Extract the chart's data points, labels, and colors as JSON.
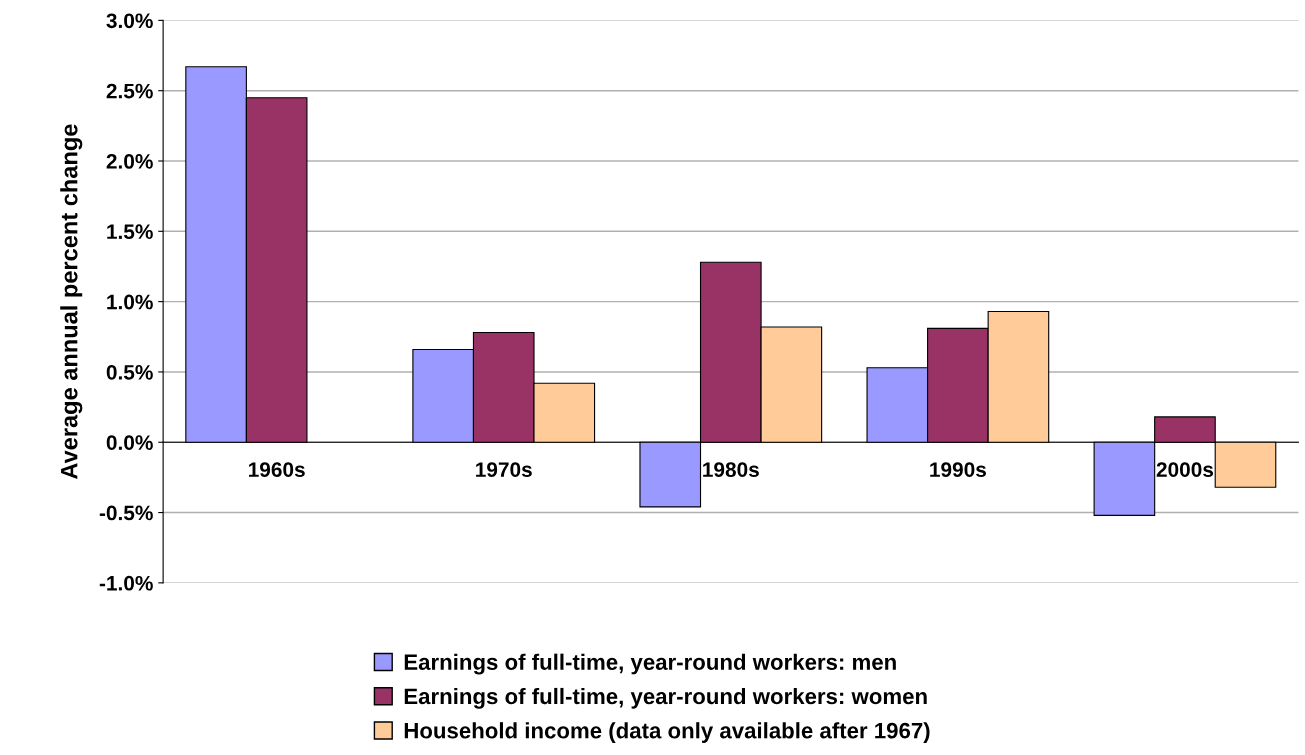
{
  "chart_data": {
    "type": "bar",
    "ylabel": "Average annual percent change",
    "categories": [
      "1960s",
      "1970s",
      "1980s",
      "1990s",
      "2000s"
    ],
    "series": [
      {
        "name": "Earnings of full-time, year-round workers: men",
        "color": "#9999ff",
        "values": [
          2.67,
          0.66,
          -0.46,
          0.53,
          -0.52
        ]
      },
      {
        "name": "Earnings of full-time, year-round workers: women",
        "color": "#993366",
        "values": [
          2.45,
          0.78,
          1.28,
          0.81,
          0.18
        ]
      },
      {
        "name": "Household income (data only available after 1967)",
        "color": "#ffcc99",
        "values": [
          null,
          0.42,
          0.82,
          0.93,
          -0.32
        ]
      }
    ],
    "ylim": [
      -1.0,
      3.0
    ],
    "yticks": [
      {
        "value": -1.0,
        "label": "-1.0%"
      },
      {
        "value": -0.5,
        "label": "-0.5%"
      },
      {
        "value": 0.0,
        "label": "0.0%"
      },
      {
        "value": 0.5,
        "label": "0.5%"
      },
      {
        "value": 1.0,
        "label": "1.0%"
      },
      {
        "value": 1.5,
        "label": "1.5%"
      },
      {
        "value": 2.0,
        "label": "2.0%"
      },
      {
        "value": 2.5,
        "label": "2.5%"
      },
      {
        "value": 3.0,
        "label": "3.0%"
      }
    ],
    "grid": "y",
    "legend": "bottom"
  }
}
